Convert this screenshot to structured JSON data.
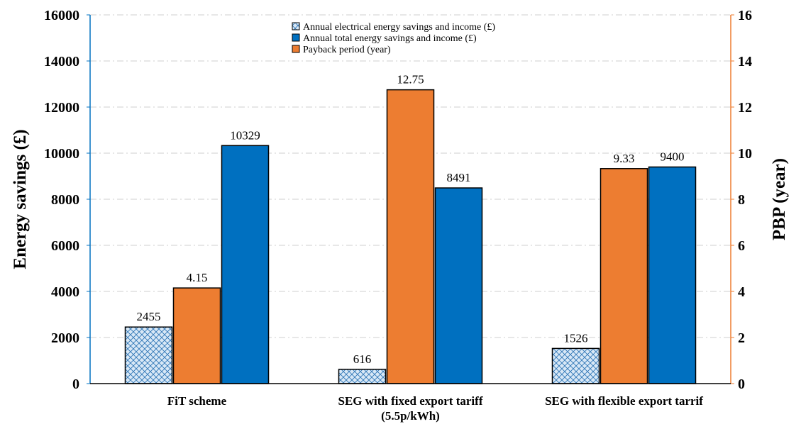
{
  "chart_data": {
    "type": "bar",
    "categories": [
      [
        "FiT scheme"
      ],
      [
        "SEG with fixed export tariff",
        "(5.5p/kWh)"
      ],
      [
        "SEG with flexible export tarrif"
      ]
    ],
    "series": [
      {
        "name": "Annual electrical energy savings and income (£)",
        "axis": "left",
        "pattern": "crosshatch",
        "values": [
          2455,
          616,
          1526
        ],
        "labels": [
          "2455",
          "616",
          "1526"
        ]
      },
      {
        "name": "Payback period (year)",
        "axis": "right",
        "values": [
          4.15,
          12.75,
          9.33
        ],
        "labels": [
          "4.15",
          "12.75",
          "9.33"
        ]
      },
      {
        "name": "Annual total energy savings and income (£)",
        "axis": "left",
        "values": [
          10329,
          8491,
          9400
        ],
        "labels": [
          "10329",
          "8491",
          "9400"
        ]
      }
    ],
    "legend_order": [
      0,
      2,
      1
    ],
    "legend_position": "top-center",
    "ylabel": "Energy savings (£)",
    "y2label": "PBP (year)",
    "ylim": [
      0,
      16000
    ],
    "y2lim": [
      0,
      16
    ],
    "yticks": [
      0,
      2000,
      4000,
      6000,
      8000,
      10000,
      12000,
      14000,
      16000
    ],
    "y2ticks": [
      0,
      2,
      4,
      6,
      8,
      10,
      12,
      14,
      16
    ],
    "grid": true,
    "colors": {
      "electrical": "#bdd7ee",
      "electrical_pattern": "#2e75b6",
      "payback": "#ed7d31",
      "total": "#0070c0",
      "left_axis": "#0070c0",
      "right_axis": "#ed7d31"
    }
  }
}
